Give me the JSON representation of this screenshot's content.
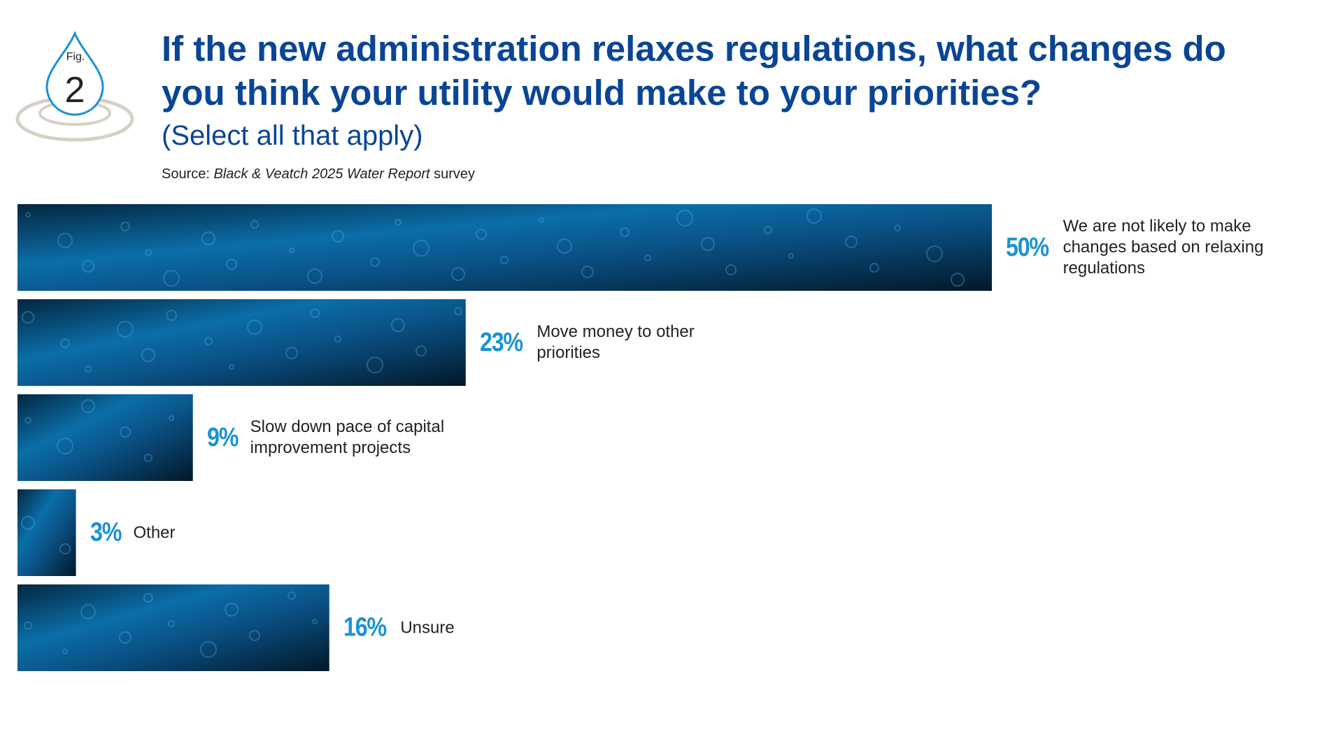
{
  "figure": {
    "label": "Fig.",
    "number": "2"
  },
  "chart_data": {
    "type": "bar",
    "orientation": "horizontal",
    "title": "If the new administration relaxes regulations, what changes do you think your utility would make to your priorities?",
    "subtitle": "(Select all that apply)",
    "source": {
      "label": "Source:",
      "title": "Black & Veatch 2025 Water Report",
      "suffix": "survey"
    },
    "categories": [
      "We are not likely to make changes based on relaxing regulations",
      "Move money to other priorities",
      "Slow down pace of capital improvement projects",
      "Other",
      "Unsure"
    ],
    "values": [
      50,
      23,
      9,
      3,
      16
    ],
    "value_labels": [
      "50%",
      "23%",
      "9%",
      "3%",
      "16%"
    ],
    "color": "#0b6ea8",
    "label_color": "#1b93d1"
  }
}
